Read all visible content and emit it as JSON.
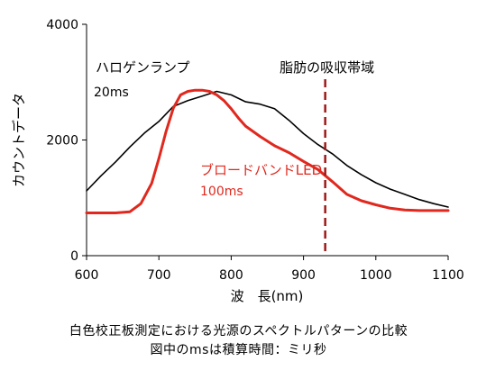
{
  "chart_data": {
    "type": "line",
    "xlabel": "波　長(nm)",
    "ylabel": "カウントデータ",
    "xlim": [
      600,
      1100
    ],
    "ylim": [
      0,
      4000
    ],
    "xticks": [
      600,
      700,
      800,
      900,
      1000,
      1100
    ],
    "yticks": [
      0,
      2000,
      4000
    ],
    "grid": false,
    "series": [
      {
        "name": "ハロゲンランプ",
        "sublabel": "20ms",
        "color": "#000000",
        "x": [
          600,
          620,
          640,
          660,
          680,
          700,
          720,
          740,
          760,
          780,
          800,
          820,
          840,
          860,
          880,
          900,
          920,
          940,
          960,
          980,
          1000,
          1020,
          1040,
          1060,
          1080,
          1100
        ],
        "y": [
          1120,
          1380,
          1620,
          1880,
          2120,
          2320,
          2580,
          2680,
          2760,
          2840,
          2780,
          2660,
          2620,
          2540,
          2340,
          2110,
          1920,
          1760,
          1560,
          1400,
          1260,
          1150,
          1060,
          970,
          900,
          840
        ]
      },
      {
        "name": "ブロードバンドLED",
        "sublabel": "100ms",
        "color": "#e0281e",
        "x": [
          600,
          620,
          640,
          660,
          675,
          690,
          700,
          710,
          720,
          730,
          740,
          750,
          760,
          770,
          780,
          790,
          800,
          810,
          820,
          840,
          860,
          880,
          900,
          920,
          940,
          960,
          980,
          1000,
          1020,
          1040,
          1060,
          1080,
          1100
        ],
        "y": [
          740,
          740,
          740,
          760,
          900,
          1250,
          1680,
          2150,
          2550,
          2780,
          2840,
          2860,
          2860,
          2840,
          2780,
          2680,
          2540,
          2380,
          2240,
          2060,
          1900,
          1780,
          1630,
          1490,
          1280,
          1060,
          950,
          880,
          820,
          790,
          780,
          780,
          780
        ]
      }
    ],
    "annotations": [
      {
        "text": "脂肪の吸収帯域",
        "x": 930,
        "style": "dashed vertical line",
        "color": "#a01818"
      }
    ]
  },
  "caption": {
    "line1": "白色校正板測定における光源のスペクトルパターンの比較",
    "line2": "図中のmsは積算時間：ミリ秒"
  }
}
